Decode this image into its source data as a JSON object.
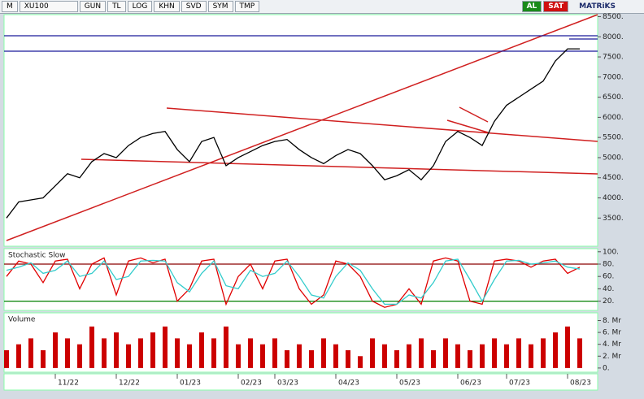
{
  "toolbar": {
    "items": [
      "M",
      "XU100",
      "GUN",
      "TL",
      "LOG",
      "KHN",
      "SVD",
      "SYM",
      "TMP"
    ],
    "buy": "AL",
    "sell": "SAT",
    "brand": "MATRiKS"
  },
  "chart_data": [
    {
      "type": "line",
      "color": "#000000",
      "values": [
        3500,
        3900,
        3950,
        4000,
        4300,
        4600,
        4500,
        4900,
        5100,
        5000,
        5300,
        5500,
        5600,
        5650,
        5200,
        4900,
        5400,
        5500,
        4800,
        5000,
        5150,
        5300,
        5400,
        5450,
        5200,
        5000,
        4850,
        5050,
        5200,
        5100,
        4800,
        4450,
        4550,
        4700,
        4450,
        4800,
        5400,
        5650,
        5500,
        5300,
        5900,
        6300,
        6500,
        6700,
        6900,
        7400,
        7700,
        7700
      ],
      "ylim": [
        2800,
        8550
      ],
      "yticks": [
        {
          "value": 3500,
          "label": "3500."
        },
        {
          "value": 4000,
          "label": "4000."
        },
        {
          "value": 4500,
          "label": "4500."
        },
        {
          "value": 5000,
          "label": "5000."
        },
        {
          "value": 5500,
          "label": "5500."
        },
        {
          "value": 6000,
          "label": "6000."
        },
        {
          "value": 6500,
          "label": "6500."
        },
        {
          "value": 7000,
          "label": "7000."
        },
        {
          "value": 7500,
          "label": "7500."
        },
        {
          "value": 8000,
          "label": "8000."
        },
        {
          "value": 8500,
          "label": "8500."
        }
      ]
    },
    {
      "type": "line",
      "title": "Stochastic Slow",
      "series": [
        {
          "color": "#e00000",
          "values": [
            60,
            85,
            80,
            50,
            85,
            88,
            40,
            80,
            90,
            30,
            85,
            90,
            82,
            88,
            20,
            40,
            85,
            88,
            15,
            60,
            80,
            40,
            85,
            88,
            40,
            15,
            30,
            85,
            80,
            60,
            20,
            10,
            15,
            40,
            15,
            85,
            90,
            85,
            20,
            15,
            85,
            88,
            85,
            75,
            85,
            88,
            65,
            75
          ]
        },
        {
          "color": "#33cccc",
          "values": [
            70,
            75,
            82,
            65,
            70,
            85,
            60,
            65,
            85,
            55,
            60,
            85,
            86,
            85,
            50,
            35,
            65,
            85,
            45,
            40,
            70,
            60,
            65,
            85,
            60,
            30,
            25,
            60,
            82,
            70,
            40,
            15,
            15,
            30,
            25,
            50,
            85,
            88,
            55,
            20,
            55,
            85,
            86,
            80,
            82,
            85,
            75,
            72
          ]
        }
      ],
      "levels": [
        {
          "value": 80,
          "color": "#8b0000"
        },
        {
          "value": 20,
          "color": "#008000"
        }
      ],
      "ylim": [
        5,
        105
      ],
      "yticks": [
        {
          "value": 20,
          "label": "20."
        },
        {
          "value": 40,
          "label": "40."
        },
        {
          "value": 60,
          "label": "60."
        },
        {
          "value": 80,
          "label": "80."
        },
        {
          "value": 100,
          "label": "100."
        }
      ]
    },
    {
      "type": "bar",
      "title": "Volume",
      "color": "#cc0000",
      "categories": [
        null,
        null,
        null,
        null,
        "11/22",
        null,
        null,
        null,
        null,
        "12/22",
        null,
        null,
        null,
        null,
        "01/23",
        null,
        null,
        null,
        null,
        "02/23",
        null,
        null,
        "03/23",
        null,
        null,
        null,
        null,
        "04/23",
        null,
        null,
        null,
        null,
        "05/23",
        null,
        null,
        null,
        null,
        "06/23",
        null,
        null,
        null,
        "07/23",
        null,
        null,
        null,
        null,
        "08/23",
        null
      ],
      "values": [
        3,
        4,
        5,
        3,
        6,
        5,
        4,
        7,
        5,
        6,
        4,
        5,
        6,
        7,
        5,
        4,
        6,
        5,
        7,
        4,
        5,
        4,
        5,
        3,
        4,
        3,
        5,
        4,
        3,
        2,
        5,
        4,
        3,
        4,
        5,
        3,
        5,
        4,
        3,
        4,
        5,
        4,
        5,
        4,
        5,
        6,
        7,
        5
      ],
      "ylim": [
        -0.7,
        9.3
      ],
      "yticks": [
        {
          "value": 0,
          "label": "0."
        },
        {
          "value": 2,
          "label": "2. Mr"
        },
        {
          "value": 4,
          "label": "4. Mr"
        },
        {
          "value": 6,
          "label": "6. Mr"
        },
        {
          "value": 8,
          "label": "8. Mr"
        }
      ]
    }
  ]
}
